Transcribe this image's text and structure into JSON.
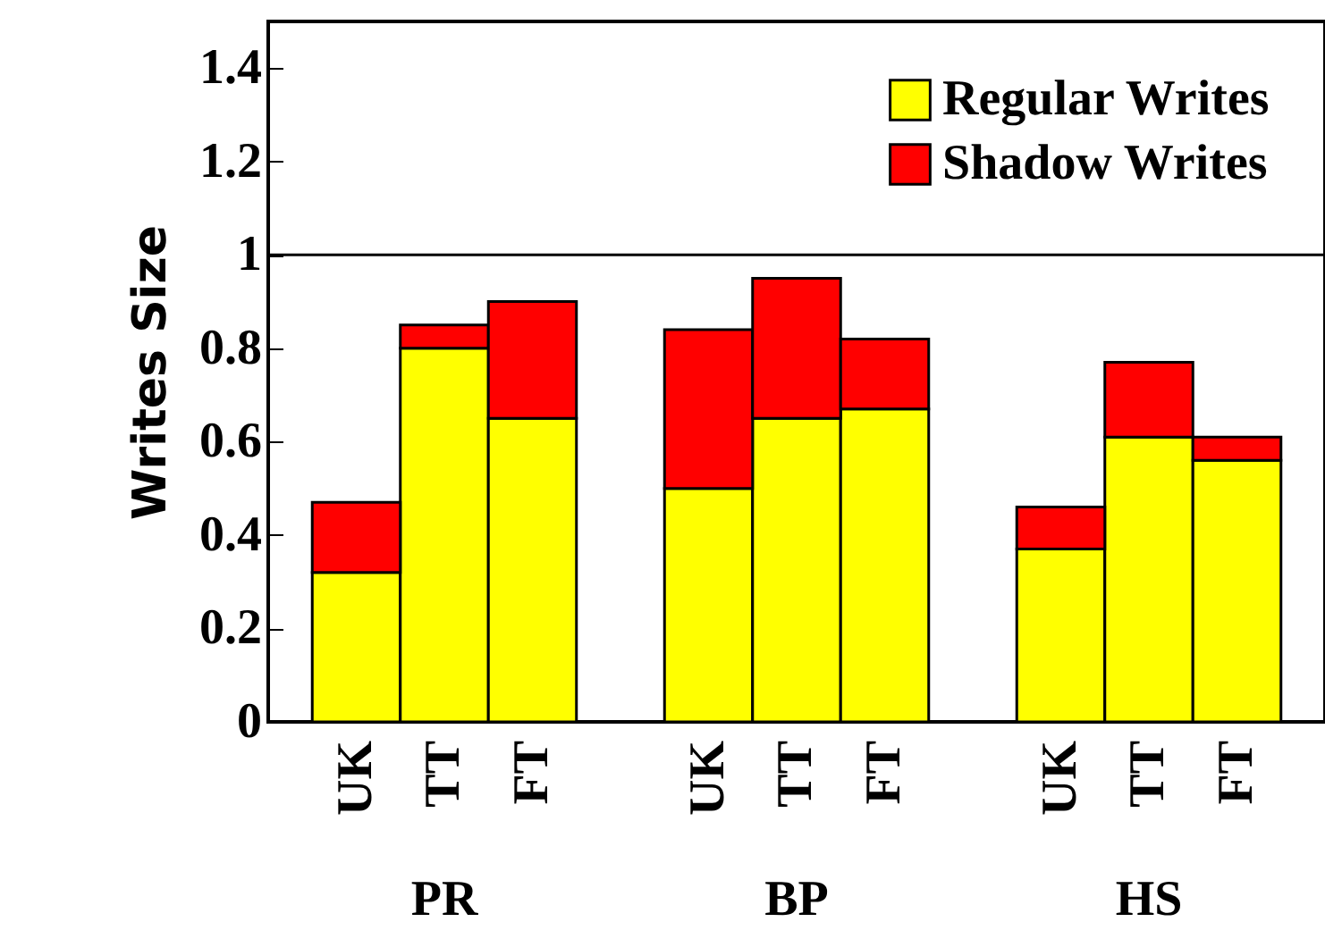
{
  "chart_data": {
    "type": "bar",
    "stacked": true,
    "ylabel": "Writes Size",
    "categories": [
      "UK",
      "TT",
      "FT",
      "UK",
      "TT",
      "FT",
      "UK",
      "TT",
      "FT"
    ],
    "annotations": [
      "PR",
      "BP",
      "HS"
    ],
    "series": [
      {
        "name": "Regular Writes",
        "color": "#ffff00",
        "values": [
          0.32,
          0.8,
          0.65,
          0.5,
          0.65,
          0.67,
          0.37,
          0.61,
          0.56
        ]
      },
      {
        "name": "Shadow Writes",
        "color": "#ff0000",
        "values": [
          0.15,
          0.05,
          0.25,
          0.34,
          0.3,
          0.15,
          0.09,
          0.16,
          0.05
        ]
      }
    ],
    "ylim": [
      0,
      1.5
    ],
    "yticks": [
      0,
      0.2,
      0.4,
      0.6,
      0.8,
      1,
      1.2,
      1.4
    ],
    "ref_lines": [
      {
        "axis": "y",
        "value": 1,
        "color": "#000000"
      }
    ],
    "legend": "top right",
    "grid": false
  }
}
